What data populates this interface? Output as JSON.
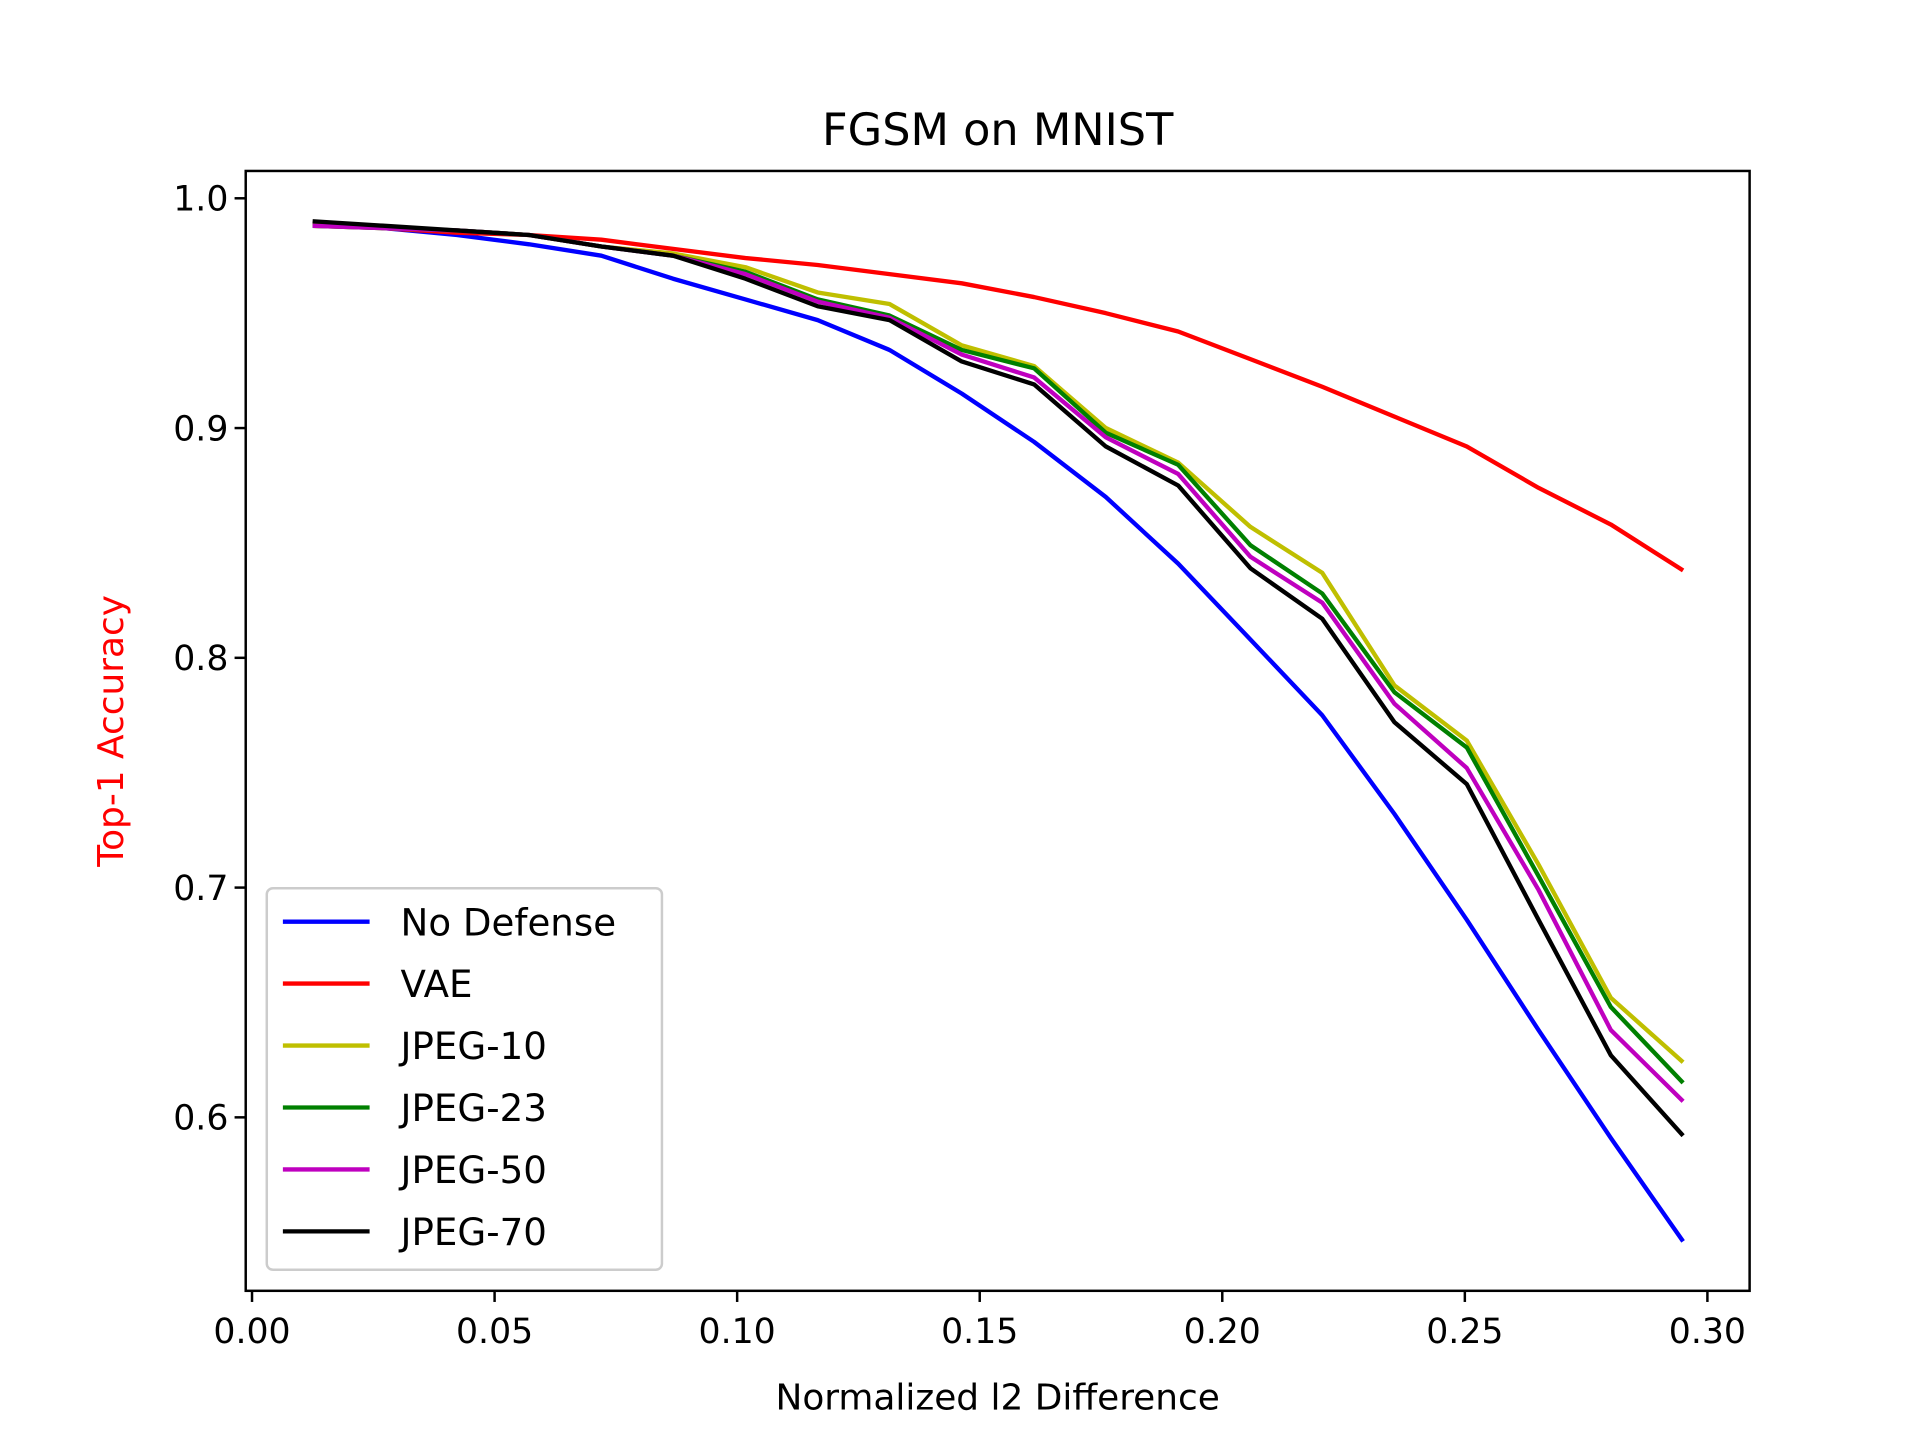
{
  "chart_data": {
    "type": "line",
    "title": "FGSM on MNIST",
    "xlabel": "Normalized l2 Difference",
    "ylabel": "Top-1 Accuracy",
    "ylabel_color": "#ff0000",
    "xlim": [
      -0.0013,
      0.3087
    ],
    "ylim": [
      0.5245,
      1.0119
    ],
    "xticks": [
      0.0,
      0.05,
      0.1,
      0.15,
      0.2,
      0.25,
      0.3
    ],
    "xtick_labels": [
      "0.00",
      "0.05",
      "0.10",
      "0.15",
      "0.20",
      "0.25",
      "0.30"
    ],
    "yticks": [
      0.6,
      0.7,
      0.8,
      0.9,
      1.0
    ],
    "ytick_labels": [
      "0.6",
      "0.7",
      "0.8",
      "0.9",
      "1.0"
    ],
    "grid": false,
    "legend_position": "lower-left",
    "x": [
      0.0125,
      0.0274,
      0.0422,
      0.0571,
      0.072,
      0.0868,
      0.1017,
      0.1166,
      0.1314,
      0.1463,
      0.1612,
      0.176,
      0.1909,
      0.2058,
      0.2206,
      0.2355,
      0.2504,
      0.2652,
      0.2801,
      0.295
    ],
    "series": [
      {
        "name": "No Defense",
        "color": "#0000ff",
        "values": [
          0.989,
          0.987,
          0.984,
          0.98,
          0.975,
          0.965,
          0.956,
          0.947,
          0.934,
          0.915,
          0.894,
          0.87,
          0.841,
          0.808,
          0.775,
          0.732,
          0.686,
          0.638,
          0.591,
          0.546
        ]
      },
      {
        "name": "VAE",
        "color": "#ff0000",
        "values": [
          0.989,
          0.987,
          0.985,
          0.984,
          0.982,
          0.978,
          0.974,
          0.971,
          0.967,
          0.963,
          0.957,
          0.95,
          0.942,
          0.93,
          0.918,
          0.905,
          0.892,
          0.874,
          0.858,
          0.838
        ]
      },
      {
        "name": "JPEG-10",
        "color": "#bfbf00",
        "values": [
          0.988,
          0.987,
          0.986,
          0.984,
          0.979,
          0.976,
          0.97,
          0.959,
          0.954,
          0.936,
          0.927,
          0.9,
          0.885,
          0.857,
          0.837,
          0.788,
          0.764,
          0.71,
          0.652,
          0.624
        ]
      },
      {
        "name": "JPEG-23",
        "color": "#008000",
        "values": [
          0.988,
          0.987,
          0.986,
          0.984,
          0.979,
          0.975,
          0.968,
          0.956,
          0.949,
          0.934,
          0.926,
          0.898,
          0.884,
          0.849,
          0.828,
          0.785,
          0.761,
          0.705,
          0.648,
          0.615
        ]
      },
      {
        "name": "JPEG-50",
        "color": "#bf00bf",
        "values": [
          0.988,
          0.987,
          0.986,
          0.984,
          0.979,
          0.975,
          0.967,
          0.955,
          0.948,
          0.932,
          0.922,
          0.896,
          0.88,
          0.844,
          0.824,
          0.78,
          0.752,
          0.699,
          0.638,
          0.607
        ]
      },
      {
        "name": "JPEG-70",
        "color": "#000000",
        "values": [
          0.99,
          0.988,
          0.986,
          0.984,
          0.979,
          0.975,
          0.965,
          0.953,
          0.947,
          0.929,
          0.919,
          0.892,
          0.875,
          0.839,
          0.817,
          0.772,
          0.745,
          0.686,
          0.627,
          0.592
        ]
      }
    ]
  }
}
